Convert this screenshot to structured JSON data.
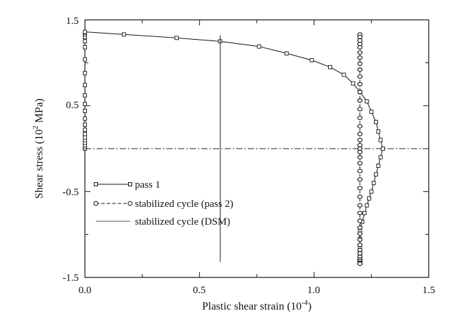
{
  "chart_data": {
    "type": "line",
    "xlabel": "Plastic shear strain (10",
    "xlabel_exp": "-4",
    "xlabel_suffix": ")",
    "ylabel": "Shear stress (10",
    "ylabel_exp": "2",
    "ylabel_suffix": " MPa)",
    "xlim": [
      0.0,
      1.5
    ],
    "ylim": [
      -1.5,
      1.5
    ],
    "x_ticks": [
      "0.0",
      "0.5",
      "1.0",
      "1.5"
    ],
    "y_ticks": [
      "1.5",
      "0.5",
      "-0.5",
      "-1.5"
    ],
    "x_tick_values": [
      0.0,
      0.5,
      1.0,
      1.5
    ],
    "y_tick_values": [
      1.5,
      0.5,
      -0.5,
      -1.5
    ],
    "zero_line_y": 0.0,
    "legend_position": "lower-left",
    "series": [
      {
        "name": "pass 1",
        "style": "solid-square",
        "x": [
          0.0,
          0.0,
          0.0,
          0.0,
          0.0,
          0.0,
          0.0,
          0.0,
          0.0,
          0.0,
          0.0,
          0.0,
          0.0,
          0.0,
          0.0,
          0.0,
          0.0,
          0.0,
          0.0,
          0.0,
          0.0,
          0.0,
          0.17,
          0.4,
          0.59,
          0.76,
          0.88,
          0.99,
          1.07,
          1.13,
          1.17,
          1.2,
          1.23,
          1.25,
          1.27,
          1.28,
          1.29,
          1.3,
          1.29,
          1.28,
          1.27,
          1.26,
          1.25,
          1.24,
          1.23,
          1.22,
          1.21,
          1.2,
          1.2,
          1.2,
          1.2,
          1.2,
          1.2
        ],
        "y": [
          0.0,
          0.02,
          0.04,
          0.07,
          0.1,
          0.13,
          0.17,
          0.22,
          0.28,
          0.35,
          0.44,
          0.52,
          0.62,
          0.74,
          0.88,
          1.04,
          1.18,
          1.25,
          1.3,
          1.33,
          1.35,
          1.36,
          1.33,
          1.29,
          1.25,
          1.19,
          1.11,
          1.03,
          0.95,
          0.86,
          0.76,
          0.66,
          0.55,
          0.43,
          0.31,
          0.2,
          0.1,
          0.0,
          -0.1,
          -0.2,
          -0.3,
          -0.4,
          -0.5,
          -0.58,
          -0.66,
          -0.75,
          -0.85,
          -0.95,
          -1.05,
          -1.15,
          -1.22,
          -1.28,
          -1.33
        ]
      },
      {
        "name": "stabilized cycle (pass 2)",
        "style": "dashed-circle",
        "x": [
          1.2,
          1.2,
          1.2,
          1.2,
          1.2,
          1.2,
          1.2,
          1.2,
          1.2,
          1.2,
          1.2,
          1.2,
          1.2,
          1.2,
          1.2,
          1.2,
          1.2,
          1.2,
          1.2,
          1.2,
          1.2,
          1.2,
          1.2,
          1.2,
          1.2,
          1.2,
          1.2,
          1.2,
          1.2,
          1.2,
          1.2,
          1.2,
          1.2,
          1.2,
          1.2,
          1.2,
          1.2,
          1.2,
          1.2,
          1.2,
          1.2
        ],
        "y": [
          1.33,
          1.3,
          1.26,
          1.22,
          1.18,
          1.12,
          1.06,
          0.99,
          0.92,
          0.84,
          0.75,
          0.66,
          0.56,
          0.46,
          0.36,
          0.26,
          0.17,
          0.1,
          0.04,
          0.0,
          -0.04,
          -0.1,
          -0.17,
          -0.26,
          -0.36,
          -0.46,
          -0.56,
          -0.66,
          -0.75,
          -0.84,
          -0.92,
          -0.99,
          -1.06,
          -1.12,
          -1.18,
          -1.22,
          -1.26,
          -1.29,
          -1.31,
          -1.33,
          -1.34
        ]
      },
      {
        "name": "stabilized cycle (DSM)",
        "style": "solid-thin",
        "x": [
          0.59,
          0.59
        ],
        "y": [
          1.32,
          -1.32
        ]
      }
    ]
  }
}
